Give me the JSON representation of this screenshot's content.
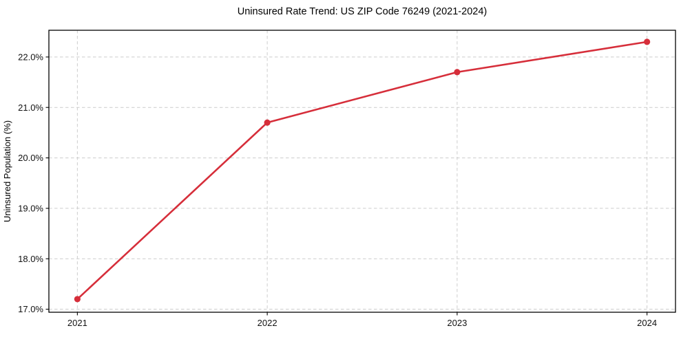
{
  "figure": {
    "background": "#ffffff"
  },
  "chart_data": {
    "type": "line",
    "title": "Uninsured Rate Trend: US ZIP Code 76249 (2021-2024)",
    "xlabel": "",
    "ylabel": "Uninsured Population (%)",
    "x": [
      2021,
      2022,
      2023,
      2024
    ],
    "values": [
      17.2,
      20.7,
      21.7,
      22.3
    ],
    "xtick_labels": [
      "2021",
      "2022",
      "2023",
      "2024"
    ],
    "ytick_values": [
      17,
      18,
      19,
      20,
      21,
      22
    ],
    "ytick_labels": [
      "17.0%",
      "18.0%",
      "19.0%",
      "20.0%",
      "21.0%",
      "22.0%"
    ],
    "xlim": [
      2020.85,
      2024.15
    ],
    "ylim": [
      16.94,
      22.53
    ],
    "grid": true,
    "grid_style": "dashed",
    "legend": "none",
    "colors": {
      "line": "#d62e3a",
      "marker": "#d62e3a",
      "grid": "#cccccc",
      "spine": "#000000",
      "text": "#000000"
    }
  }
}
